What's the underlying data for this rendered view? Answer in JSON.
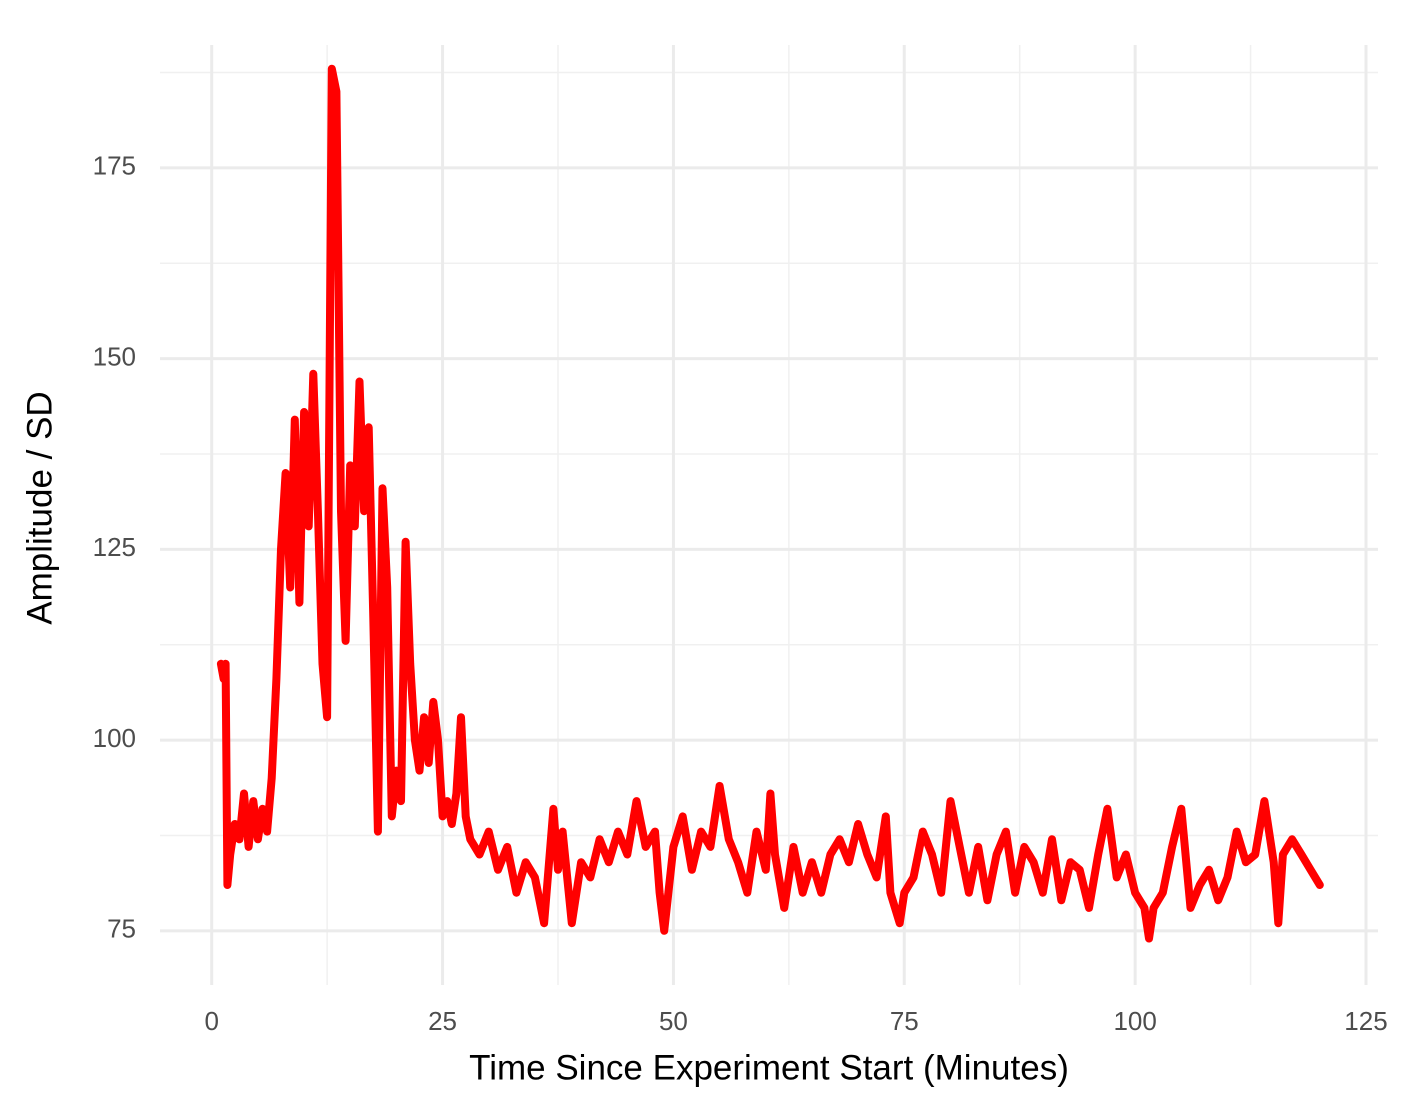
{
  "chart_data": {
    "type": "line",
    "x_label": "Time Since Experiment Start (Minutes)",
    "y_label": "Amplitude / SD",
    "x": [
      1,
      1.3,
      1.5,
      1.7,
      2,
      2.5,
      3,
      3.5,
      4,
      4.5,
      5,
      5.5,
      6,
      6.5,
      7,
      7.5,
      8,
      8.5,
      9,
      9.5,
      10,
      10.5,
      11,
      11.5,
      12,
      12.5,
      13,
      13.5,
      14,
      14.5,
      15,
      15.5,
      16,
      16.5,
      17,
      17.5,
      18,
      18.5,
      19,
      19.5,
      20,
      20.5,
      21,
      21.5,
      22,
      22.5,
      23,
      23.5,
      24,
      24.5,
      25,
      25.5,
      26,
      26.5,
      27,
      27.5,
      28,
      29,
      30,
      31,
      32,
      33,
      34,
      35,
      35.5,
      36,
      37,
      37.5,
      38,
      39,
      40,
      41,
      42,
      43,
      44,
      45,
      46,
      47,
      48,
      48.5,
      49,
      50,
      51,
      52,
      53,
      54,
      55,
      56,
      57,
      58,
      59,
      60,
      60.5,
      61,
      62,
      63,
      64,
      65,
      66,
      67,
      68,
      69,
      70,
      71,
      72,
      73,
      73.5,
      74,
      74.5,
      75,
      76,
      77,
      78,
      79,
      80,
      81,
      82,
      83,
      84,
      85,
      86,
      87,
      88,
      89,
      90,
      91,
      92,
      93,
      94,
      95,
      96,
      97,
      98,
      99,
      100,
      101,
      101.5,
      102,
      103,
      104,
      105,
      106,
      107,
      108,
      109,
      110,
      111,
      112,
      113,
      114,
      115,
      115.5,
      116,
      117,
      118,
      119,
      120
    ],
    "series": [
      {
        "color": "#ff0000",
        "values": [
          110,
          108,
          110,
          81,
          85,
          89,
          87,
          93,
          86,
          92,
          87,
          91,
          88,
          95,
          108,
          125,
          135,
          120,
          142,
          118,
          143,
          128,
          148,
          130,
          110,
          103,
          188,
          185,
          130,
          113,
          136,
          128,
          147,
          130,
          141,
          116,
          88,
          133,
          120,
          90,
          96,
          92,
          126,
          110,
          100,
          96,
          103,
          97,
          105,
          100,
          90,
          92,
          89,
          93,
          103,
          90,
          87,
          85,
          88,
          83,
          86,
          80,
          84,
          82,
          79,
          76,
          91,
          83,
          88,
          76,
          84,
          82,
          87,
          84,
          88,
          85,
          92,
          86,
          88,
          80,
          75,
          86,
          90,
          83,
          88,
          86,
          94,
          87,
          84,
          80,
          88,
          83,
          93,
          85,
          78,
          86,
          80,
          84,
          80,
          85,
          87,
          84,
          89,
          85,
          82,
          90,
          80,
          78,
          76,
          80,
          82,
          88,
          85,
          80,
          92,
          86,
          80,
          86,
          79,
          85,
          88,
          80,
          86,
          84,
          80,
          87,
          79,
          84,
          83,
          78,
          85,
          91,
          82,
          85,
          80,
          78,
          74,
          78,
          80,
          86,
          91,
          78,
          81,
          83,
          79,
          82,
          88,
          84,
          85,
          92,
          84,
          76,
          85,
          87,
          85,
          83,
          81
        ]
      }
    ],
    "xlim": [
      -5.6,
      126.3
    ],
    "xticks": [
      0,
      25,
      50,
      75,
      100,
      125
    ],
    "minor_xticks": [
      12.5,
      37.5,
      62.5,
      87.5,
      112.5
    ],
    "ylim": [
      67.9,
      191.1
    ],
    "yticks": [
      75,
      100,
      125,
      150,
      175
    ],
    "minor_yticks": [
      87.5,
      112.5,
      137.5,
      162.5,
      187.5
    ],
    "grid": true
  }
}
